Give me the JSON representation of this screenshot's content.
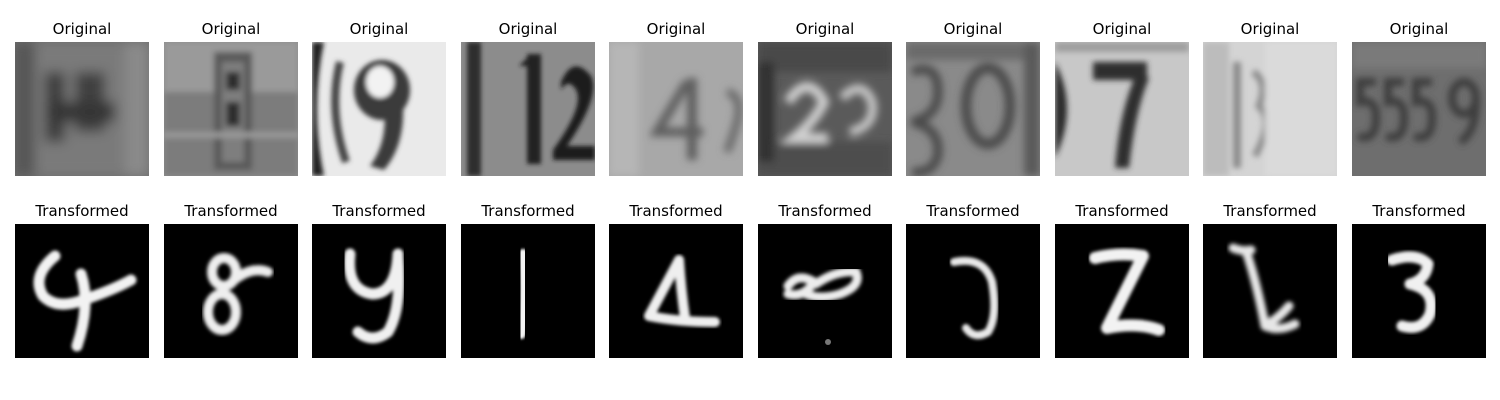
{
  "figure": {
    "rows": [
      {
        "label": "Original",
        "panels": [
          {
            "title": "Original",
            "image": "svhn-digit-4-blurry-dark"
          },
          {
            "title": "Original",
            "image": "svhn-digit-8-plate"
          },
          {
            "title": "Original",
            "image": "svhn-digit-9-light"
          },
          {
            "title": "Original",
            "image": "svhn-digits-12"
          },
          {
            "title": "Original",
            "image": "svhn-digit-4-grey"
          },
          {
            "title": "Original",
            "image": "svhn-digits-29-dark"
          },
          {
            "title": "Original",
            "image": "svhn-digits-30"
          },
          {
            "title": "Original",
            "image": "svhn-digit-7-light"
          },
          {
            "title": "Original",
            "image": "svhn-digit-1-light"
          },
          {
            "title": "Original",
            "image": "svhn-digits-5359-dark"
          }
        ]
      },
      {
        "label": "Transformed",
        "panels": [
          {
            "title": "Transformed",
            "image": "mnist-style-digit-4"
          },
          {
            "title": "Transformed",
            "image": "mnist-style-digit-8"
          },
          {
            "title": "Transformed",
            "image": "mnist-style-digit-9"
          },
          {
            "title": "Transformed",
            "image": "mnist-style-digit-1"
          },
          {
            "title": "Transformed",
            "image": "mnist-style-digit-4-triangle"
          },
          {
            "title": "Transformed",
            "image": "mnist-style-digit-2"
          },
          {
            "title": "Transformed",
            "image": "mnist-style-digit-0"
          },
          {
            "title": "Transformed",
            "image": "mnist-style-digit-2-z"
          },
          {
            "title": "Transformed",
            "image": "mnist-style-digit-1-noisy"
          },
          {
            "title": "Transformed",
            "image": "mnist-style-digit-3"
          }
        ]
      }
    ]
  }
}
